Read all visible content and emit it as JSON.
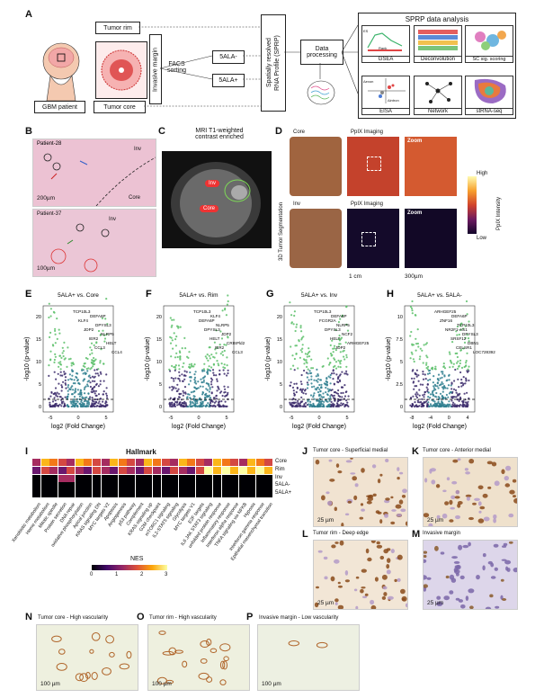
{
  "panelA": {
    "label": "A",
    "patient_label": "GBM patient",
    "tumor_rim": "Tumor rim",
    "tumor_core": "Tumor core",
    "invasive_margin": "Invasive margin",
    "facs": "FACS\nsorting",
    "ala_neg": "5ALA-",
    "ala_pos": "5ALA+",
    "sprp": "Spatially resolved\nRNA Profile (SPRP)",
    "data_processing": "Data\nprocessing",
    "analysis_title": "SPRP data analysis",
    "es_label": "ES",
    "rank_label": "Rank",
    "dintron_label": "Δintron",
    "dexon_label": "Δexon",
    "tiles": [
      "GSEA",
      "Deconvolution",
      "SC sig. scoring",
      "EISA",
      "Network",
      "stRNA-seq"
    ]
  },
  "panelB": {
    "label": "B",
    "patient1": "Patient-28",
    "patient2": "Patient-37",
    "inv": "Inv",
    "core": "Core",
    "scale1": "200µm",
    "scale2": "100µm"
  },
  "panelC": {
    "label": "C",
    "title": "MRI T1-weighted\ncontrast enriched",
    "inv": "Inv",
    "core": "Core"
  },
  "panelD": {
    "label": "D",
    "side_label": "3D Tumor Segmentation",
    "core": "Core",
    "inv": "Inv",
    "ppix1": "PpIX Imaging",
    "ppix2": "PpIX Imaging",
    "zoom": "Zoom",
    "scale_1cm": "1 cm",
    "scale_300": "300µm",
    "cbar_high": "High",
    "cbar_low": "Low",
    "cbar_label": "PpIX Intensity"
  },
  "volcanoes": [
    {
      "label": "E",
      "title": "5ALA+ vs. Core",
      "xticks": [
        "-5",
        "0",
        "5"
      ],
      "genes": [
        "TCP10L3",
        "DEFA6P",
        "KLF4",
        "DPYSL3",
        "JDP2",
        "NLRP5",
        "IER2",
        "HELT",
        "CCL3",
        "CCL4"
      ]
    },
    {
      "label": "F",
      "title": "5ALA+ vs. Rim",
      "xticks": [
        "-5",
        "0",
        "5"
      ],
      "genes": [
        "TCP10L3",
        "KLF4",
        "DEFA6P",
        "NLRP5",
        "DPYSL3",
        "JDP2",
        "HELT",
        "CRISPld2",
        "IER2",
        "CCL3"
      ]
    },
    {
      "label": "G",
      "title": "5ALA+ vs. Inv",
      "xticks": [
        "-5",
        "0",
        "5"
      ],
      "genes": [
        "TCP10L3",
        "DEFA6P",
        "FCGR2A",
        "NLRP5",
        "DPYSL3",
        "NCF2",
        "HELT",
        "ARHGEF25",
        "JDP2"
      ]
    },
    {
      "label": "H",
      "title": "5ALA+ vs. 5ALA-",
      "xticks": [
        "-8",
        "-4",
        "0",
        "4"
      ],
      "genes": [
        "ARHGEF25",
        "DEFA6P",
        "ZNF16",
        "TCP10L3",
        "NR2F1-AS1",
        "DPYSL3",
        "SRSF12",
        "DBN1",
        "CELSR1",
        "LOC728392"
      ]
    }
  ],
  "volcano_axes": {
    "ylabel": "-log10 (p-value)",
    "xlabel": "log2 (Fold Change)",
    "yticks_EFG": [
      "0",
      "5",
      "10",
      "15",
      "20"
    ],
    "yticks_H": [
      "0",
      "2.5",
      "5",
      "7.5",
      "10"
    ]
  },
  "panelI": {
    "label": "I",
    "title": "Hallmark",
    "rows": [
      "Core",
      "Rim",
      "Inv",
      "5ALA-",
      "5ALA+"
    ],
    "columns": [
      "Xenobiotic metabolism",
      "Heme metabolism",
      "Mitotic spindle",
      "Protein secretion",
      "DNA repair",
      "oxidative phosphorylation",
      "Apical junction",
      "KRAS signaling DN",
      "MYC targets V2",
      "Apoptosis",
      "Angiogenesis",
      "p53 pathway",
      "Complement",
      "KRAS signaling up",
      "G2M checkpoint",
      "mTORC1 signaling",
      "IL2-STAT5 signaling",
      "Glycolysis",
      "MYC targets V1",
      "E2F targets",
      "IL6 JAK STAT3 signaling",
      "unfolded protein response",
      "Inflammatory response",
      "Interferon alpha response",
      "TNFA signaling via NFKB",
      "Hypoxia",
      "Interferon gamma response",
      "Epithelial mesenchymal transition"
    ],
    "legend_title": "NES",
    "legend_ticks": [
      "0",
      "1",
      "2",
      "3"
    ]
  },
  "panelJ": {
    "label": "J",
    "title": "Tumor core - Superficial medial",
    "scale": "25 µm"
  },
  "panelK": {
    "label": "K",
    "title": "Tumor core - Anterior medial",
    "scale": "25 µm"
  },
  "panelL": {
    "label": "L",
    "title": "Tumor rim - Deep edge",
    "scale": "25 µm"
  },
  "panelM": {
    "label": "M",
    "title": "Invasive margin",
    "scale": "25 µm"
  },
  "panelN": {
    "label": "N",
    "title": "Tumor core - High vascularity",
    "scale": "100 µm"
  },
  "panelO": {
    "label": "O",
    "title": "Tumor rim - High vascularity",
    "scale": "100 µm"
  },
  "panelP": {
    "label": "P",
    "title": "Invasive margin - Low vascularity",
    "scale": "100 µm"
  },
  "colors": {
    "he_pink": "#e8b8cc",
    "volcano_green": "#5cb85c",
    "volcano_purple": "#3b2a6b",
    "ihc_brown": "#8a4a1a"
  }
}
